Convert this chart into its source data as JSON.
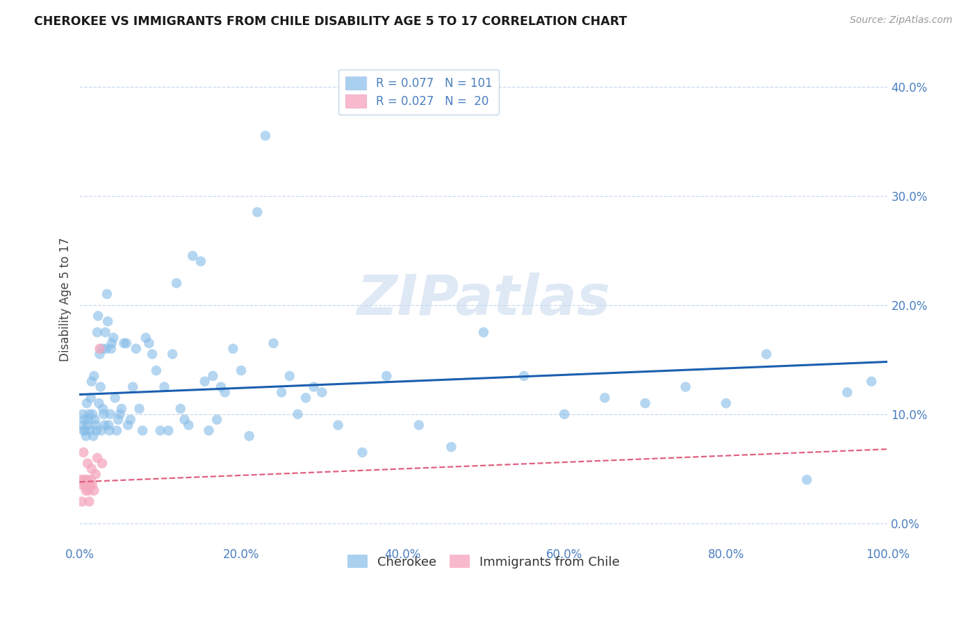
{
  "title": "CHEROKEE VS IMMIGRANTS FROM CHILE DISABILITY AGE 5 TO 17 CORRELATION CHART",
  "source": "Source: ZipAtlas.com",
  "ylabel": "Disability Age 5 to 17",
  "xlim": [
    0.0,
    1.0
  ],
  "ylim": [
    -0.02,
    0.43
  ],
  "watermark": "ZIPatlas",
  "cherokee_color": "#85bce8",
  "chile_color": "#f5a8be",
  "trendline_cherokee_color": "#1a5fb0",
  "trendline_chile_color": "#e06080",
  "background_color": "#ffffff",
  "grid_color": "#c8d8ec",
  "cherokee_x": [
    0.003,
    0.004,
    0.005,
    0.006,
    0.007,
    0.008,
    0.009,
    0.01,
    0.011,
    0.012,
    0.013,
    0.014,
    0.015,
    0.016,
    0.017,
    0.018,
    0.019,
    0.02,
    0.021,
    0.022,
    0.023,
    0.024,
    0.025,
    0.026,
    0.027,
    0.028,
    0.029,
    0.03,
    0.031,
    0.032,
    0.033,
    0.034,
    0.035,
    0.036,
    0.037,
    0.038,
    0.039,
    0.04,
    0.042,
    0.044,
    0.046,
    0.048,
    0.05,
    0.052,
    0.055,
    0.058,
    0.06,
    0.063,
    0.066,
    0.07,
    0.074,
    0.078,
    0.082,
    0.086,
    0.09,
    0.095,
    0.1,
    0.105,
    0.11,
    0.115,
    0.12,
    0.125,
    0.13,
    0.135,
    0.14,
    0.15,
    0.155,
    0.16,
    0.165,
    0.17,
    0.175,
    0.18,
    0.19,
    0.2,
    0.21,
    0.22,
    0.23,
    0.24,
    0.25,
    0.26,
    0.27,
    0.28,
    0.29,
    0.3,
    0.32,
    0.35,
    0.38,
    0.42,
    0.46,
    0.5,
    0.55,
    0.6,
    0.65,
    0.7,
    0.75,
    0.8,
    0.85,
    0.9,
    0.95,
    0.98
  ],
  "cherokee_y": [
    0.09,
    0.1,
    0.085,
    0.095,
    0.085,
    0.08,
    0.11,
    0.09,
    0.095,
    0.1,
    0.085,
    0.115,
    0.13,
    0.1,
    0.08,
    0.135,
    0.095,
    0.09,
    0.085,
    0.175,
    0.19,
    0.11,
    0.155,
    0.125,
    0.085,
    0.16,
    0.105,
    0.1,
    0.09,
    0.175,
    0.16,
    0.21,
    0.185,
    0.09,
    0.085,
    0.1,
    0.16,
    0.165,
    0.17,
    0.115,
    0.085,
    0.095,
    0.1,
    0.105,
    0.165,
    0.165,
    0.09,
    0.095,
    0.125,
    0.16,
    0.105,
    0.085,
    0.17,
    0.165,
    0.155,
    0.14,
    0.085,
    0.125,
    0.085,
    0.155,
    0.22,
    0.105,
    0.095,
    0.09,
    0.245,
    0.24,
    0.13,
    0.085,
    0.135,
    0.095,
    0.125,
    0.12,
    0.16,
    0.14,
    0.08,
    0.285,
    0.355,
    0.165,
    0.12,
    0.135,
    0.1,
    0.115,
    0.125,
    0.12,
    0.09,
    0.065,
    0.135,
    0.09,
    0.07,
    0.175,
    0.135,
    0.1,
    0.115,
    0.11,
    0.125,
    0.11,
    0.155,
    0.04,
    0.12,
    0.13
  ],
  "chile_x": [
    0.002,
    0.003,
    0.004,
    0.005,
    0.006,
    0.007,
    0.008,
    0.009,
    0.01,
    0.011,
    0.012,
    0.013,
    0.014,
    0.015,
    0.016,
    0.018,
    0.02,
    0.022,
    0.025,
    0.028
  ],
  "chile_y": [
    0.04,
    0.02,
    0.035,
    0.065,
    0.04,
    0.035,
    0.03,
    0.04,
    0.055,
    0.03,
    0.02,
    0.035,
    0.04,
    0.05,
    0.035,
    0.03,
    0.045,
    0.06,
    0.16,
    0.055
  ],
  "cherokee_trend_x": [
    0.0,
    1.0
  ],
  "cherokee_trend_y": [
    0.118,
    0.148
  ],
  "chile_trend_x": [
    0.0,
    1.0
  ],
  "chile_trend_y": [
    0.038,
    0.068
  ]
}
